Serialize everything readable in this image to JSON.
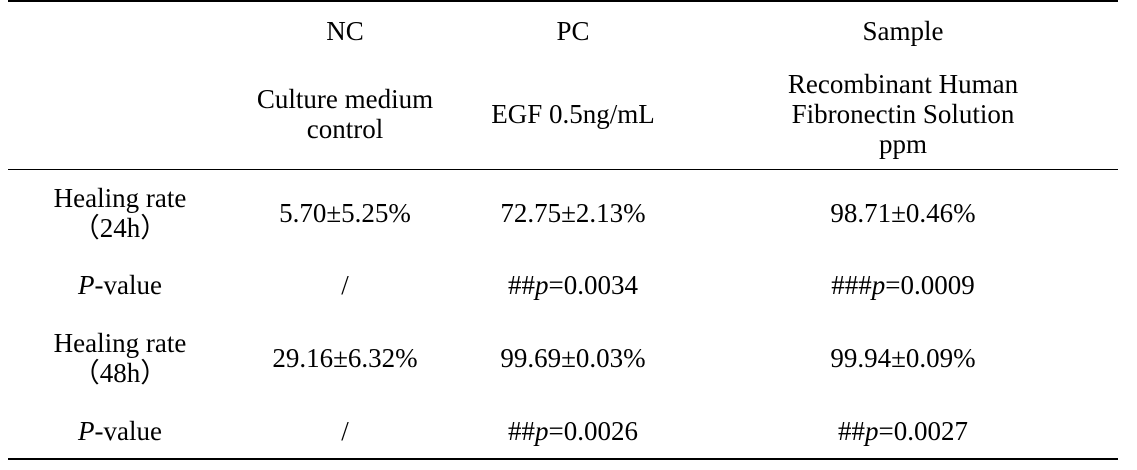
{
  "table": {
    "columns": [
      {
        "group": "NC",
        "sub": [
          "Culture medium",
          "control"
        ]
      },
      {
        "group": "PC",
        "sub": [
          "EGF 0.5ng/mL"
        ]
      },
      {
        "group": "Sample",
        "sub": [
          "Recombinant Human",
          "Fibronectin Solution",
          "ppm"
        ]
      }
    ],
    "rows": [
      {
        "label": [
          "Healing rate",
          "（24h）"
        ],
        "cells": [
          "5.70±5.25%",
          "72.75±2.13%",
          "98.71±0.46%"
        ]
      },
      {
        "label_italic": "P",
        "label_rest": "-value",
        "cells": [
          {
            "text": "/"
          },
          {
            "prefix": "##",
            "italic": "p",
            "suffix": "=0.0034"
          },
          {
            "prefix": "###",
            "italic": "p",
            "suffix": "=0.0009"
          }
        ]
      },
      {
        "label": [
          "Healing rate",
          "（48h）"
        ],
        "cells": [
          "29.16±6.32%",
          "99.69±0.03%",
          "99.94±0.09%"
        ]
      },
      {
        "label_italic": "P",
        "label_rest": "-value",
        "cells": [
          {
            "text": "/"
          },
          {
            "prefix": "##",
            "italic": "p",
            "suffix": "=0.0026"
          },
          {
            "prefix": "##",
            "italic": "p",
            "suffix": "=0.0027"
          }
        ]
      }
    ]
  }
}
